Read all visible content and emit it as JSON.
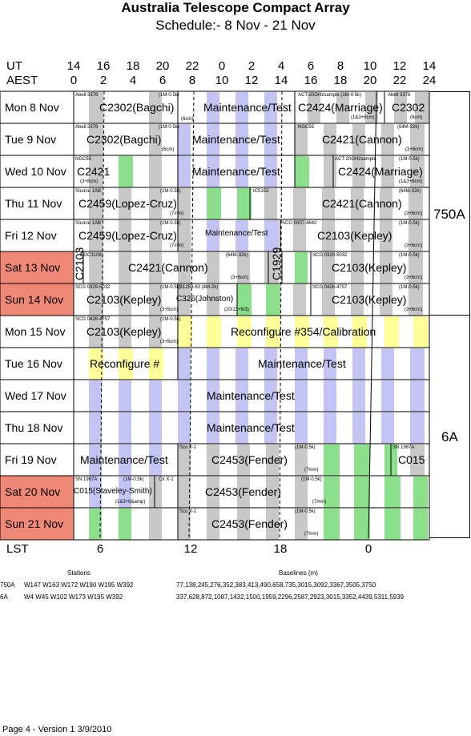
{
  "title": "Australia Telescope Compact Array",
  "subtitle": "Schedule:- 8  Nov - 21 Nov",
  "axes": {
    "ut_label": "UT",
    "aest_label": "AEST",
    "lst_label": "LST",
    "ut_ticks": [
      "14",
      "16",
      "18",
      "20",
      "22",
      "0",
      "2",
      "4",
      "6",
      "8",
      "10",
      "12",
      "14"
    ],
    "aest_ticks": [
      "0",
      "2",
      "4",
      "6",
      "8",
      "10",
      "12",
      "14",
      "16",
      "18",
      "20",
      "22",
      "24"
    ],
    "lst_ticks": [
      "6",
      "12",
      "18",
      "0"
    ]
  },
  "days": [
    {
      "label": "Mon   8  Nov",
      "weekend": false
    },
    {
      "label": "Tue   9  Nov",
      "weekend": false
    },
    {
      "label": "Wed  10 Nov",
      "weekend": false
    },
    {
      "label": "Thu   11 Nov",
      "weekend": false
    },
    {
      "label": "Fri   12 Nov",
      "weekend": false
    },
    {
      "label": "Sat   13 Nov",
      "weekend": true
    },
    {
      "label": "Sun  14 Nov",
      "weekend": true
    },
    {
      "label": "Mon  15 Nov",
      "weekend": false
    },
    {
      "label": "Tue   16 Nov",
      "weekend": false
    },
    {
      "label": "Wed  17 Nov",
      "weekend": false
    },
    {
      "label": "Thu   18 Nov",
      "weekend": false
    },
    {
      "label": "Fri   19 Nov",
      "weekend": false
    },
    {
      "label": "Sat   20 Nov",
      "weekend": true
    },
    {
      "label": "Sun  21 Nov",
      "weekend": true
    }
  ],
  "configs": [
    {
      "name": "750A"
    },
    {
      "name": "6A"
    }
  ],
  "blocks": [
    {
      "row": 0,
      "t": "C2302(Bagchi)",
      "big": true
    },
    {
      "row": 0,
      "t": "Abell 3376",
      "big": false
    },
    {
      "row": 0,
      "t": "(1M-0.5k)",
      "big": false
    },
    {
      "row": 0,
      "t": "(6cm)",
      "big": false
    },
    {
      "row": 0,
      "t": "Maintenance/Test",
      "big": true
    },
    {
      "row": 0,
      "t": "ACT-20GHzsample (1M-0.5k)",
      "big": false
    },
    {
      "row": 0,
      "t": "C2424(Marriage)",
      "big": true
    },
    {
      "row": 0,
      "t": "(1&3+6cm)",
      "big": false
    },
    {
      "row": 0,
      "t": "Abell 3376",
      "big": false
    },
    {
      "row": 0,
      "t": "C2302",
      "big": true
    },
    {
      "row": 0,
      "t": "(6cm)",
      "big": false
    },
    {
      "row": 1,
      "t": "Abell 3376",
      "big": false
    },
    {
      "row": 1,
      "t": "(1M-0.5k)",
      "big": false
    },
    {
      "row": 1,
      "t": "C2302(Bagchi)",
      "big": true
    },
    {
      "row": 1,
      "t": "(6cm)",
      "big": false
    },
    {
      "row": 1,
      "t": "Maintenance/Test",
      "big": true
    },
    {
      "row": 1,
      "t": "NGC55",
      "big": false
    },
    {
      "row": 1,
      "t": "(64M-32k)",
      "big": false
    },
    {
      "row": 1,
      "t": "C2421(Cannon)",
      "big": true
    },
    {
      "row": 1,
      "t": "(3+6cm)",
      "big": false
    },
    {
      "row": 2,
      "t": "NGC55",
      "big": false
    },
    {
      "row": 2,
      "t": "C2421",
      "big": true
    },
    {
      "row": 2,
      "t": "(3+6cm)",
      "big": false
    },
    {
      "row": 2,
      "t": "Maintenance/Test",
      "big": true
    },
    {
      "row": 2,
      "t": "ACT-20GHzsample",
      "big": false
    },
    {
      "row": 2,
      "t": "(1M-0.5k)",
      "big": false
    },
    {
      "row": 2,
      "t": "C2424(Marriage)",
      "big": true
    },
    {
      "row": 2,
      "t": "(1&3+6cm)",
      "big": false
    },
    {
      "row": 3,
      "t": "Source 1AB",
      "big": false
    },
    {
      "row": 3,
      "t": "(1M-0.5k)",
      "big": false
    },
    {
      "row": 3,
      "t": "C2459(Lopez-Cruz)",
      "big": true
    },
    {
      "row": 3,
      "t": "(7mm)",
      "big": false
    },
    {
      "row": 3,
      "t": "IC5152",
      "big": false
    },
    {
      "row": 3,
      "t": "(64M-32k)",
      "big": false
    },
    {
      "row": 3,
      "t": "C2421(Cannon)",
      "big": true
    },
    {
      "row": 3,
      "t": "(3+6cm)",
      "big": false
    },
    {
      "row": 4,
      "t": "Source 1AB",
      "big": false
    },
    {
      "row": 4,
      "t": "(1M-0.5k)",
      "big": false
    },
    {
      "row": 4,
      "t": "C2459(Lopez-Cruz)",
      "big": true
    },
    {
      "row": 4,
      "t": "(7mm)",
      "big": false
    },
    {
      "row": 4,
      "t": "Maintenance/Test",
      "big": false
    },
    {
      "row": 4,
      "t": "SCG 0007-4642",
      "big": false
    },
    {
      "row": 4,
      "t": "(1M-0.5k)",
      "big": false
    },
    {
      "row": 4,
      "t": "C2103(Kepley)",
      "big": true
    },
    {
      "row": 4,
      "t": "(3+6cm)",
      "big": false
    },
    {
      "row": 5,
      "t": "C2103",
      "big": true
    },
    {
      "row": 5,
      "t": "NGC3109",
      "big": false
    },
    {
      "row": 5,
      "t": "C2421(Cannon)",
      "big": true
    },
    {
      "row": 5,
      "t": "(64M-32k)",
      "big": false
    },
    {
      "row": 5,
      "t": "(3+6cm)",
      "big": false
    },
    {
      "row": 5,
      "t": "C1929",
      "big": true
    },
    {
      "row": 5,
      "t": "SCG 0329-5032",
      "big": false
    },
    {
      "row": 5,
      "t": "(1M-0.5k)",
      "big": false
    },
    {
      "row": 5,
      "t": "C2103(Kepley)",
      "big": true
    },
    {
      "row": 5,
      "t": "(3+6cm)",
      "big": false
    },
    {
      "row": 6,
      "t": "SCG 0329-5032",
      "big": false
    },
    {
      "row": 6,
      "t": "(1M-0.5k)",
      "big": false
    },
    {
      "row": 6,
      "t": "C2103(Kepley)",
      "big": true
    },
    {
      "row": 6,
      "t": "(3+6cm)",
      "big": false
    },
    {
      "row": 6,
      "t": "B1259-63 (4M-2k)",
      "big": false
    },
    {
      "row": 6,
      "t": "C326(Johnston)",
      "big": false
    },
    {
      "row": 6,
      "t": "(20/13+6/3)",
      "big": false
    },
    {
      "row": 6,
      "t": "SCG 0426-4757",
      "big": false
    },
    {
      "row": 6,
      "t": "(1M-0.5k)",
      "big": false
    },
    {
      "row": 6,
      "t": "C2103(Kepley)",
      "big": true
    },
    {
      "row": 6,
      "t": "(3+6cm)",
      "big": false
    },
    {
      "row": 7,
      "t": "SCG 0426-4757",
      "big": false
    },
    {
      "row": 7,
      "t": "(1M-0.5k)",
      "big": false
    },
    {
      "row": 7,
      "t": "C2103(Kepley)",
      "big": true
    },
    {
      "row": 7,
      "t": "(3+6cm)",
      "big": false
    },
    {
      "row": 7,
      "t": "Reconfigure #354/Calibration",
      "big": true
    },
    {
      "row": 8,
      "t": "Reconfigure #",
      "big": true
    },
    {
      "row": 8,
      "t": "Maintenance/Test",
      "big": true
    },
    {
      "row": 9,
      "t": "Maintenance/Test",
      "big": true
    },
    {
      "row": 10,
      "t": "Maintenance/Test",
      "big": true
    },
    {
      "row": 11,
      "t": "Maintenance/Test",
      "big": true
    },
    {
      "row": 11,
      "t": "Sco X-1",
      "big": false
    },
    {
      "row": 11,
      "t": "(1M-0.5k)",
      "big": false
    },
    {
      "row": 11,
      "t": "C2453(Fender)",
      "big": true
    },
    {
      "row": 11,
      "t": "(7mm)",
      "big": false
    },
    {
      "row": 11,
      "t": "SN 1987A",
      "big": false
    },
    {
      "row": 11,
      "t": "C015",
      "big": true
    },
    {
      "row": 12,
      "t": "SN 1987A",
      "big": false
    },
    {
      "row": 12,
      "t": "(1M-0.5k)",
      "big": false
    },
    {
      "row": 12,
      "t": "C015(Staveley-Smith)",
      "big": false
    },
    {
      "row": 12,
      "t": "(1&3+6&amp)",
      "big": false
    },
    {
      "row": 12,
      "t": "Cir X-1",
      "big": false
    },
    {
      "row": 12,
      "t": "(1M-0.5k)",
      "big": false
    },
    {
      "row": 12,
      "t": "C2453(Fender)",
      "big": true
    },
    {
      "row": 12,
      "t": "(7mm)",
      "big": false
    },
    {
      "row": 13,
      "t": "Sco X-1",
      "big": false
    },
    {
      "row": 13,
      "t": "(1M-0.5k)",
      "big": false
    },
    {
      "row": 13,
      "t": "C2453(Fender)",
      "big": true
    },
    {
      "row": 13,
      "t": "(7mm)",
      "big": false
    }
  ],
  "stations_header": "Stations",
  "baselines_header": "Baselines (m)",
  "config_rows": [
    {
      "name": "750A",
      "stations": "W147 W163 W172 W190 W195 W392",
      "baselines": "77,138,245,276,352,383,413,490,658,735,3015,3092,3367,3505,3750"
    },
    {
      "name": "6A",
      "stations": "W4  W45 W102 W173 W195 W392",
      "baselines": "337,628,872,1087,1432,1500,1959,2296,2587,2923,3015,3352,4439,5311,5939"
    }
  ],
  "footer": "Page 4 - Version 1  3/9/2010",
  "colors": {
    "weekend": "#f08878",
    "gray": "#c8c8c8",
    "lavender": "#c4c4f4",
    "green": "#8ce08c",
    "yellow": "#ffff99",
    "yellow_cell": "#ffffa0"
  }
}
